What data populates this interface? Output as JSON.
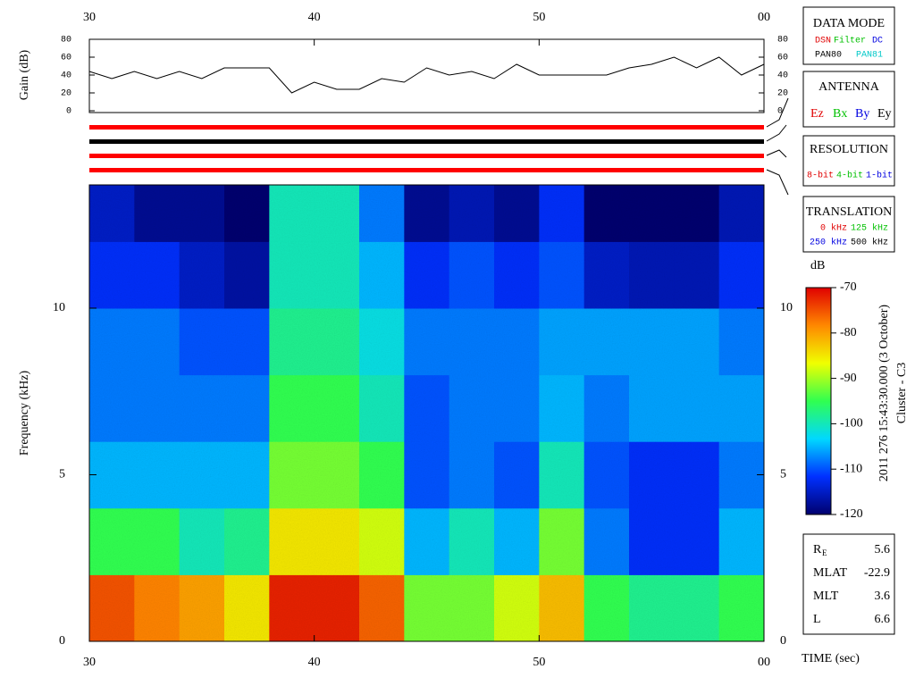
{
  "chart_data": [
    {
      "type": "line",
      "ylabel": "Gain (dB)",
      "x": [
        30,
        31,
        32,
        33,
        34,
        35,
        36,
        37,
        38,
        39,
        40,
        41,
        42,
        43,
        44,
        45,
        46,
        47,
        48,
        49,
        50,
        51,
        52,
        53,
        54,
        55,
        56,
        57,
        58,
        59,
        60
      ],
      "values": [
        44,
        36,
        44,
        36,
        44,
        36,
        48,
        48,
        48,
        20,
        32,
        24,
        24,
        36,
        32,
        48,
        40,
        44,
        36,
        52,
        40,
        40,
        40,
        40,
        48,
        52,
        60,
        48,
        60,
        40,
        52
      ],
      "color": "#000000",
      "xlim": [
        30,
        60
      ],
      "xticks": [
        30,
        40,
        50,
        {
          "value": 60,
          "label": "00"
        }
      ],
      "ylim": [
        0,
        80
      ],
      "yticks": [
        0,
        20,
        40,
        60,
        80
      ]
    },
    {
      "type": "heatmap",
      "ylabel": "Frequency (kHz)",
      "xlabel": "TIME (sec)",
      "x_bins": [
        30,
        32,
        34,
        36,
        38,
        40,
        42,
        44,
        46,
        48,
        50,
        52,
        54,
        56,
        58,
        60
      ],
      "y_bins": [
        0,
        2,
        4,
        6,
        8,
        10,
        12,
        13.7
      ],
      "values": [
        [
          -75,
          -95,
          -105,
          -108,
          -108,
          -112,
          -115
        ],
        [
          -78,
          -95,
          -105,
          -108,
          -108,
          -112,
          -118
        ],
        [
          -80,
          -100,
          -105,
          -108,
          -110,
          -115,
          -118
        ],
        [
          -85,
          -98,
          -105,
          -108,
          -110,
          -117,
          -120
        ],
        [
          -72,
          -85,
          -92,
          -95,
          -98,
          -100,
          -100
        ],
        [
          -72,
          -85,
          -92,
          -95,
          -98,
          -100,
          -100
        ],
        [
          -76,
          -88,
          -95,
          -100,
          -102,
          -105,
          -108
        ],
        [
          -92,
          -105,
          -110,
          -110,
          -108,
          -112,
          -118
        ],
        [
          -92,
          -100,
          -108,
          -108,
          -108,
          -110,
          -116
        ],
        [
          -88,
          -105,
          -110,
          -108,
          -108,
          -112,
          -118
        ],
        [
          -82,
          -92,
          -100,
          -105,
          -106,
          -110,
          -112
        ],
        [
          -95,
          -108,
          -110,
          -108,
          -106,
          -115,
          -120
        ],
        [
          -98,
          -112,
          -112,
          -106,
          -106,
          -116,
          -120
        ],
        [
          -98,
          -112,
          -112,
          -106,
          -106,
          -116,
          -120
        ],
        [
          -95,
          -105,
          -108,
          -106,
          -108,
          -112,
          -116
        ]
      ],
      "xlim": [
        30,
        60
      ],
      "xticks": [
        30,
        40,
        50,
        {
          "value": 60,
          "label": "00"
        }
      ],
      "ylim": [
        0,
        13.7
      ],
      "yticks": [
        0,
        5,
        10
      ],
      "colorbar": {
        "label": "dB",
        "lim": [
          -120,
          -70
        ],
        "ticks": [
          -70,
          -80,
          -90,
          -100,
          -110,
          -120
        ],
        "colors": [
          "#00006e",
          "#0030ff",
          "#00d8ff",
          "#30ff50",
          "#f0ff00",
          "#ff8800",
          "#e00000"
        ]
      }
    }
  ],
  "side": {
    "data_mode": {
      "title": "DATA MODE",
      "items": [
        "DSN",
        "Filter",
        "DC",
        "PAN80",
        "PAN81"
      ]
    },
    "antenna": {
      "title": "ANTENNA",
      "items": [
        "Ez",
        "Bx",
        "By",
        "Ey"
      ]
    },
    "resolution": {
      "title": "RESOLUTION",
      "items": [
        "8-bit",
        "4-bit",
        "1-bit"
      ]
    },
    "translation": {
      "title": "TRANSLATION",
      "items": [
        "0 kHz",
        "125 kHz",
        "250 kHz",
        "500 kHz"
      ]
    },
    "info": [
      {
        "label": "R",
        "sub": "E",
        "value": 5.6
      },
      {
        "label": "MLAT",
        "value": -22.9
      },
      {
        "label": "MLT",
        "value": 3.6
      },
      {
        "label": "L",
        "value": 6.6
      }
    ],
    "timestamp": "2011 276 15:43:30.000 (3 October)",
    "spacecraft": "Cluster - C3"
  }
}
